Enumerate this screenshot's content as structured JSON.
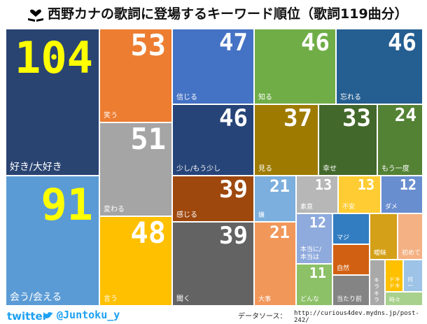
{
  "header": {
    "title": "西野カナの歌詞に登場するキーワード順位（歌詞119曲分）",
    "icon": "heart-book-icon"
  },
  "footer": {
    "twitter_logo": "twitter",
    "handle": "@Juntoku_y",
    "source_label": "データソース：",
    "source_url": "http://curious4dev.mydns.jp/post-242/"
  },
  "colors": {
    "highlight_value": "#ffff00",
    "default_value": "#ffffff",
    "twitter_blue": "#1da1f2"
  },
  "chart_data": {
    "type": "treemap",
    "title": "西野カナの歌詞に登場するキーワード順位（歌詞119曲分）",
    "items": [
      {
        "label": "好き/大好き",
        "value": 104,
        "color": "#2a4472",
        "highlight": true
      },
      {
        "label": "会う/会える",
        "value": 91,
        "color": "#5b9bd5",
        "highlight": true
      },
      {
        "label": "笑う",
        "value": 53,
        "color": "#ed7d31"
      },
      {
        "label": "変わる",
        "value": 51,
        "color": "#a5a5a5"
      },
      {
        "label": "言う",
        "value": 48,
        "color": "#ffc000"
      },
      {
        "label": "信じる",
        "value": 47,
        "color": "#4472c4"
      },
      {
        "label": "知る",
        "value": 46,
        "color": "#70ad47"
      },
      {
        "label": "忘れる",
        "value": 46,
        "color": "#255e91"
      },
      {
        "label": "少し/もう少し",
        "value": 46,
        "color": "#264478"
      },
      {
        "label": "見る",
        "value": 37,
        "color": "#9e7b00"
      },
      {
        "label": "幸せ",
        "value": 33,
        "color": "#43682b"
      },
      {
        "label": "もう一度",
        "value": 24,
        "color": "#548235"
      },
      {
        "label": "感じる",
        "value": 39,
        "color": "#9e480e"
      },
      {
        "label": "聞く",
        "value": 39,
        "color": "#636363"
      },
      {
        "label": "嫌",
        "value": 21,
        "color": "#7cafdd"
      },
      {
        "label": "大事",
        "value": 21,
        "color": "#f1975a"
      },
      {
        "label": "素直",
        "value": 13,
        "color": "#b7b7b7"
      },
      {
        "label": "不安",
        "value": 13,
        "color": "#ffcd33"
      },
      {
        "label": "ダメ",
        "value": 12,
        "color": "#698ed0"
      },
      {
        "label": "本当に/\n本当は",
        "value": 12,
        "color": "#8faadc"
      },
      {
        "label": "どんな",
        "value": 11,
        "color": "#8cc168"
      },
      {
        "label": "マジ",
        "value": 0,
        "color": "#327dc2"
      },
      {
        "label": "自然",
        "value": 0,
        "color": "#d26012"
      },
      {
        "label": "当たり前",
        "value": 0,
        "color": "#848484"
      },
      {
        "label": "曖昧",
        "value": 0,
        "color": "#d4a017"
      },
      {
        "label": "初めて",
        "value": 0,
        "color": "#f4b183"
      },
      {
        "label": "キラ\nキラ",
        "value": 0,
        "color": "#a9a9a9"
      },
      {
        "label": "ドキ\nドキ",
        "value": 0,
        "color": "#ffc000"
      },
      {
        "label": "何\n一",
        "value": 0,
        "color": "#9dc3e6"
      },
      {
        "label": "時々",
        "value": 0,
        "color": "#a9d18e"
      }
    ],
    "printed_values": {
      "好き/大好き": "104",
      "会う/会える": "91",
      "笑う": "53",
      "変わる": "51",
      "言う": "48",
      "信じる": "47",
      "知る": "46",
      "忘れる": "46",
      "少し/もう少し": "46",
      "見る": "37",
      "幸せ": "33",
      "もう一度": "24",
      "感じる": "39",
      "聞く": "39",
      "嫌": "21",
      "大事": "21",
      "素直": "13",
      "不安": "13",
      "ダメ": "12",
      "本当に/\n本当は": "12",
      "どんな": "11"
    }
  }
}
